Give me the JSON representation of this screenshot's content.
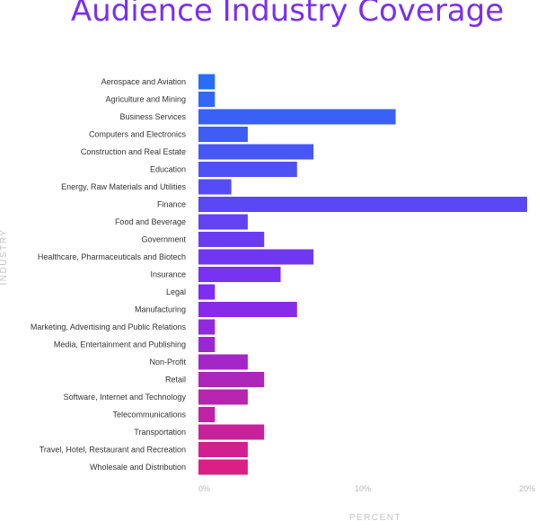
{
  "chart_data": {
    "type": "bar",
    "orientation": "horizontal",
    "title": "Audience Industry Coverage",
    "xlabel": "PERCENT",
    "ylabel": "INDUSTRY",
    "xlim": [
      0,
      20
    ],
    "xticks": [
      0,
      10,
      20
    ],
    "xtick_labels": [
      "0%",
      "10%",
      "20%"
    ],
    "grid": false,
    "legend": "none",
    "colors": {
      "start": "#2b6cf7",
      "mid": "#7f2cf2",
      "end": "#db1f84"
    },
    "categories": [
      "Aerospace and Aviation",
      "Agriculture and Mining",
      "Business Services",
      "Computers and Electronics",
      "Construction and Real Estate",
      "Education",
      "Energy, Raw Materials and Utilities",
      "Finance",
      "Food and Beverage",
      "Government",
      "Healthcare, Pharmaceuticals and Biotech",
      "Insurance",
      "Legal",
      "Manufacturing",
      "Marketing, Advertising and Public Relations",
      "Media, Entertainment and Publishing",
      "Non-Profit",
      "Retail",
      "Software, Internet and Technology",
      "Telecommunications",
      "Transportation",
      "Travel, Hotel, Restaurant and Recreation",
      "Wholesale and Distribution"
    ],
    "values": [
      1,
      1,
      12,
      3,
      7,
      6,
      2,
      20,
      3,
      4,
      7,
      5,
      1,
      6,
      1,
      1,
      3,
      4,
      3,
      1,
      4,
      3,
      3
    ]
  }
}
